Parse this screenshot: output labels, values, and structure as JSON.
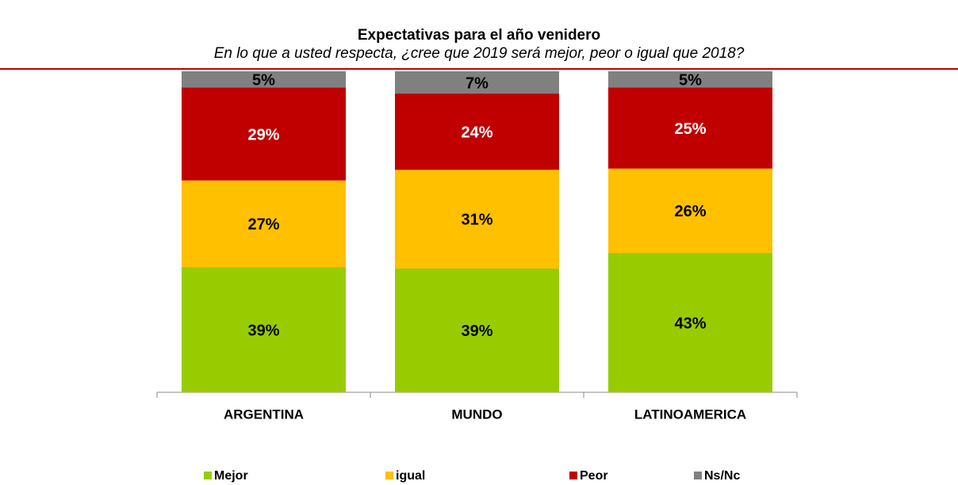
{
  "chart_data": {
    "type": "bar",
    "stacking": "percent",
    "title": "Expectativas para  el año venidero",
    "subtitle": "En lo que a usted respecta, ¿cree que 2019 será mejor, peor o igual que 2018?",
    "categories": [
      "ARGENTINA",
      "MUNDO",
      "LATINOAMERICA"
    ],
    "series": [
      {
        "name": "Mejor",
        "color": "#99cc00",
        "values": [
          39,
          39,
          43
        ],
        "value_labels": [
          "39%",
          "39%",
          "43%"
        ]
      },
      {
        "name": "igual",
        "color": "#ffc000",
        "values": [
          27,
          31,
          26
        ],
        "value_labels": [
          "27%",
          "31%",
          "26%"
        ]
      },
      {
        "name": "Peor",
        "color": "#c00000",
        "values": [
          29,
          24,
          25
        ],
        "value_labels": [
          "29%",
          "24%",
          "25%"
        ]
      },
      {
        "name": "Ns/Nc",
        "color": "#808080",
        "values": [
          5,
          7,
          5
        ],
        "value_labels": [
          "5%",
          "7%",
          "5%"
        ]
      }
    ],
    "legend": "bottom"
  }
}
